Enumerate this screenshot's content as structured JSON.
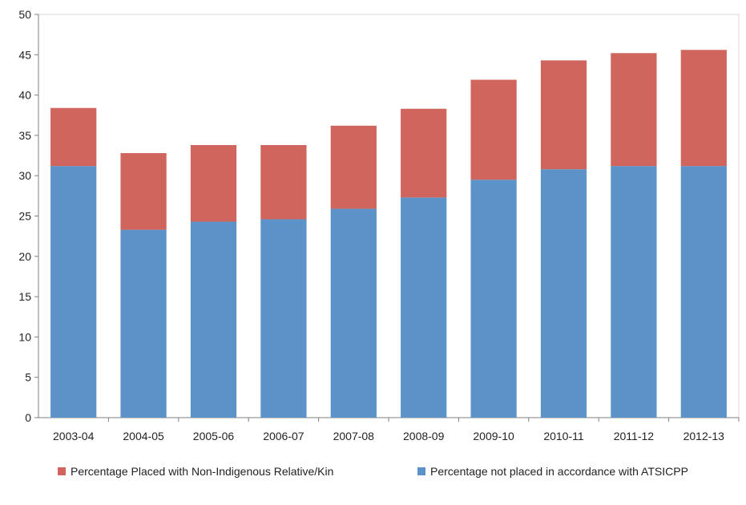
{
  "chart_data": {
    "type": "bar",
    "stacked": true,
    "title": "",
    "xlabel": "",
    "ylabel": "",
    "ylim": [
      0,
      50
    ],
    "yticks": [
      0,
      5,
      10,
      15,
      20,
      25,
      30,
      35,
      40,
      45,
      50
    ],
    "grid": false,
    "legend_position": "bottom",
    "categories": [
      "2003-04",
      "2004-05",
      "2005-06",
      "2006-07",
      "2007-08",
      "2008-09",
      "2009-10",
      "2010-11",
      "2011-12",
      "2012-13"
    ],
    "series": [
      {
        "name": "Percentage not placed in accordance with ATSICPP",
        "color": "#5b93c9",
        "values": [
          31.2,
          23.3,
          24.3,
          24.6,
          25.9,
          27.3,
          29.5,
          30.8,
          31.2,
          31.2
        ]
      },
      {
        "name": "Percentage Placed with Non-Indigenous Relative/Kin",
        "color": "#cf655c",
        "values": [
          7.2,
          9.5,
          9.5,
          9.2,
          10.3,
          11.0,
          12.4,
          13.5,
          14.0,
          14.4
        ]
      }
    ]
  }
}
